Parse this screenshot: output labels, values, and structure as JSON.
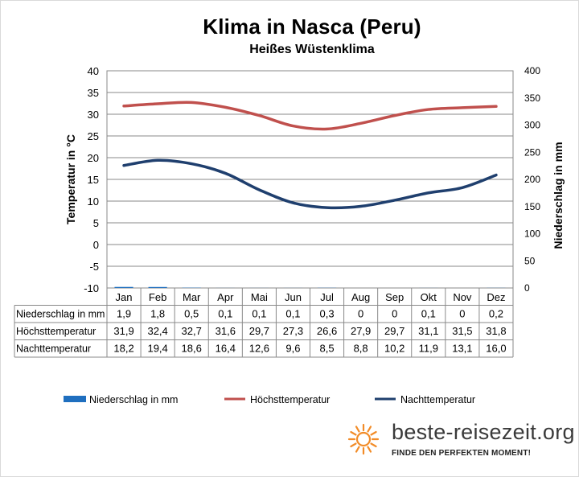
{
  "chart_data": {
    "type": "bar+line",
    "title": "Klima in Nasca (Peru)",
    "subtitle": "Heißes Wüstenklima",
    "categories": [
      "Jan",
      "Feb",
      "Mar",
      "Apr",
      "Mai",
      "Jun",
      "Jul",
      "Aug",
      "Sep",
      "Okt",
      "Nov",
      "Dez"
    ],
    "y_left": {
      "label": "Temperatur in °C",
      "ticks": [
        "40",
        "35",
        "30",
        "25",
        "20",
        "15",
        "10",
        "5",
        "0",
        "-5",
        "-10"
      ],
      "range": [
        -10,
        40
      ]
    },
    "y_right": {
      "label": "Niederschlag in mm",
      "ticks": [
        "400",
        "350",
        "300",
        "250",
        "200",
        "150",
        "100",
        "50",
        "0"
      ],
      "range": [
        0,
        400
      ]
    },
    "series": [
      {
        "name": "Niederschlag in mm",
        "kind": "bar",
        "axis": "right",
        "color": "#1f6fbf",
        "values": [
          1.9,
          1.8,
          0.5,
          0.1,
          0.1,
          0.1,
          0.3,
          0,
          0,
          0.1,
          0,
          0.2
        ],
        "labels": [
          "1,9",
          "1,8",
          "0,5",
          "0,1",
          "0,1",
          "0,1",
          "0,3",
          "0",
          "0",
          "0,1",
          "0",
          "0,2"
        ]
      },
      {
        "name": "Höchsttemperatur",
        "kind": "line",
        "axis": "left",
        "color": "#c0504d",
        "values": [
          31.9,
          32.4,
          32.7,
          31.6,
          29.7,
          27.3,
          26.6,
          27.9,
          29.7,
          31.1,
          31.5,
          31.8
        ],
        "labels": [
          "31,9",
          "32,4",
          "32,7",
          "31,6",
          "29,7",
          "27,3",
          "26,6",
          "27,9",
          "29,7",
          "31,1",
          "31,5",
          "31,8"
        ]
      },
      {
        "name": "Nachttemperatur",
        "kind": "line",
        "axis": "left",
        "color": "#1f3f6e",
        "values": [
          18.2,
          19.4,
          18.6,
          16.4,
          12.6,
          9.6,
          8.5,
          8.8,
          10.2,
          11.9,
          13.1,
          16.0
        ],
        "labels": [
          "18,2",
          "19,4",
          "18,6",
          "16,4",
          "12,6",
          "9,6",
          "8,5",
          "8,8",
          "10,2",
          "11,9",
          "13,1",
          "16,0"
        ]
      }
    ]
  },
  "branding": {
    "site": "beste-reisezeit.org",
    "tagline": "FINDE DEN PERFEKTEN MOMENT!",
    "sun_color": "#f28c28"
  }
}
